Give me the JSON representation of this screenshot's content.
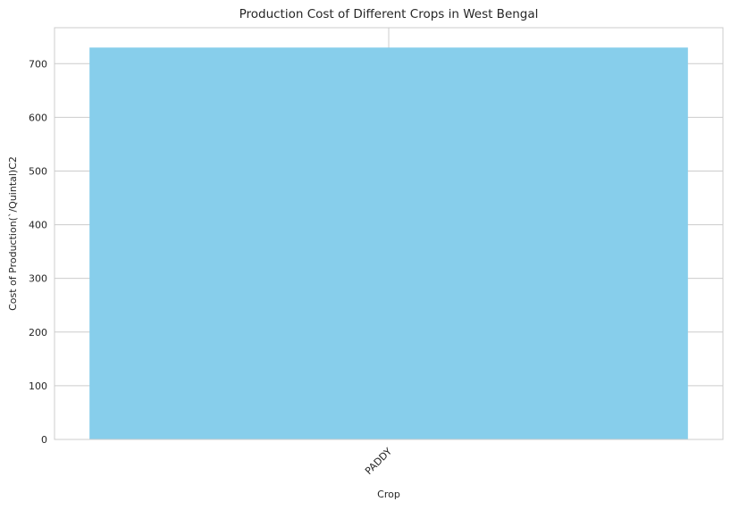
{
  "chart_data": {
    "type": "bar",
    "title": "Production Cost of Different Crops in West Bengal",
    "xlabel": "Crop",
    "ylabel": "Cost of Production(`/Quintal)C2",
    "categories": [
      "PADDY"
    ],
    "values": [
      730
    ],
    "ylim": [
      0,
      767
    ],
    "yticks": [
      0,
      100,
      200,
      300,
      400,
      500,
      600,
      700
    ],
    "bar_color": "#87CEEB",
    "grid": true,
    "grid_color": "#cccccc",
    "x_tick_rotation": 45
  }
}
